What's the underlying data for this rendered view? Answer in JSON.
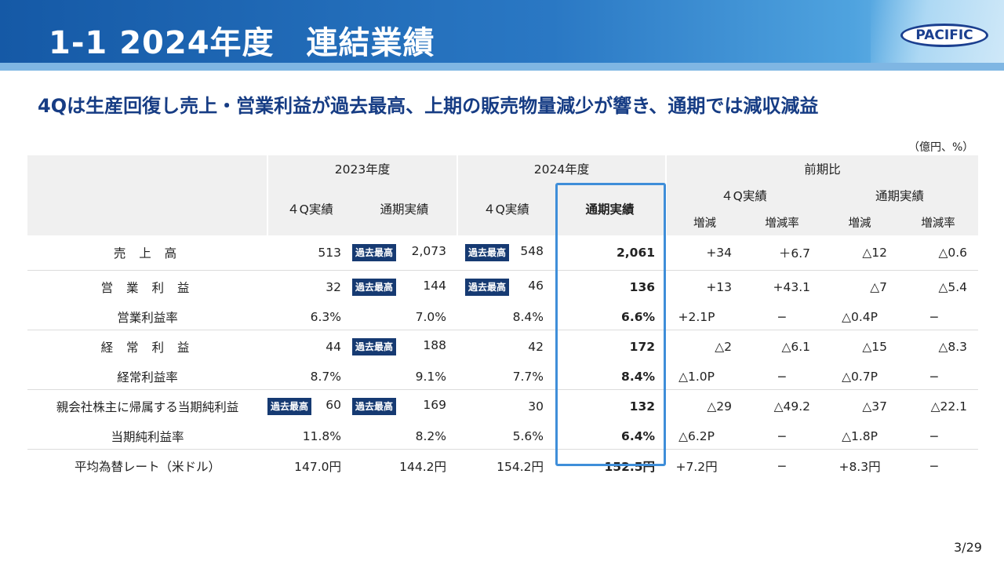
{
  "header": {
    "title": "1-1 2024年度　連結業績",
    "logo_text": "PACIFIC"
  },
  "subtitle": "4Qは生産回復し売上・営業利益が過去最高、上期の販売物量減少が響き、通期では減収減益",
  "unit": "（億円、%）",
  "badge_text": "過去最高",
  "table": {
    "headers": {
      "fy2023": "2023年度",
      "fy2024": "2024年度",
      "yoy": "前期比",
      "q4_actual": "４Q実績",
      "full_year_actual": "通期実績",
      "q4_actual_yoy": "４Q実績",
      "full_year_actual_yoy": "通期実績",
      "change": "増減",
      "change_rate": "増減率"
    },
    "rows": [
      {
        "label": "売 上 高",
        "c1": "513",
        "c2": "2,073",
        "c3": "548",
        "c4": "2,061",
        "c5": "+34",
        "c6": "＋6.7",
        "c7": "△12",
        "c8": "△0.6"
      },
      {
        "label": "営 業 利 益",
        "c1": "32",
        "c2": "144",
        "c3": "46",
        "c4": "136",
        "c5": "+13",
        "c6": "+43.1",
        "c7": "△7",
        "c8": "△5.4"
      },
      {
        "label": "営業利益率",
        "c1": "6.3%",
        "c2": "7.0%",
        "c3": "8.4%",
        "c4": "6.6%",
        "c5": "+2.1P",
        "c6": "−",
        "c7": "△0.4P",
        "c8": "−"
      },
      {
        "label": "経 常 利 益",
        "c1": "44",
        "c2": "188",
        "c3": "42",
        "c4": "172",
        "c5": "△2",
        "c6": "△6.1",
        "c7": "△15",
        "c8": "△8.3"
      },
      {
        "label": "経常利益率",
        "c1": "8.7%",
        "c2": "9.1%",
        "c3": "7.7%",
        "c4": "8.4%",
        "c5": "△1.0P",
        "c6": "−",
        "c7": "△0.7P",
        "c8": "−"
      },
      {
        "label": "親会社株主に帰属する当期純利益",
        "c1": "60",
        "c2": "169",
        "c3": "30",
        "c4": "132",
        "c5": "△29",
        "c6": "△49.2",
        "c7": "△37",
        "c8": "△22.1"
      },
      {
        "label": "当期純利益率",
        "c1": "11.8%",
        "c2": "8.2%",
        "c3": "5.6%",
        "c4": "6.4%",
        "c5": "△6.2P",
        "c6": "−",
        "c7": "△1.8P",
        "c8": "−"
      },
      {
        "label": "平均為替レート（米ドル）",
        "c1": "147.0円",
        "c2": "144.2円",
        "c3": "154.2円",
        "c4": "152.5円",
        "c5": "+7.2円",
        "c6": "−",
        "c7": "+8.3円",
        "c8": "−"
      }
    ]
  },
  "page_number": "3/29",
  "colors": {
    "header_blue": "#1559a6",
    "subtitle_navy": "#163c84",
    "badge_navy": "#163a72",
    "highlight_border": "#3f8ed9",
    "header_gray": "#f0f0f0"
  }
}
